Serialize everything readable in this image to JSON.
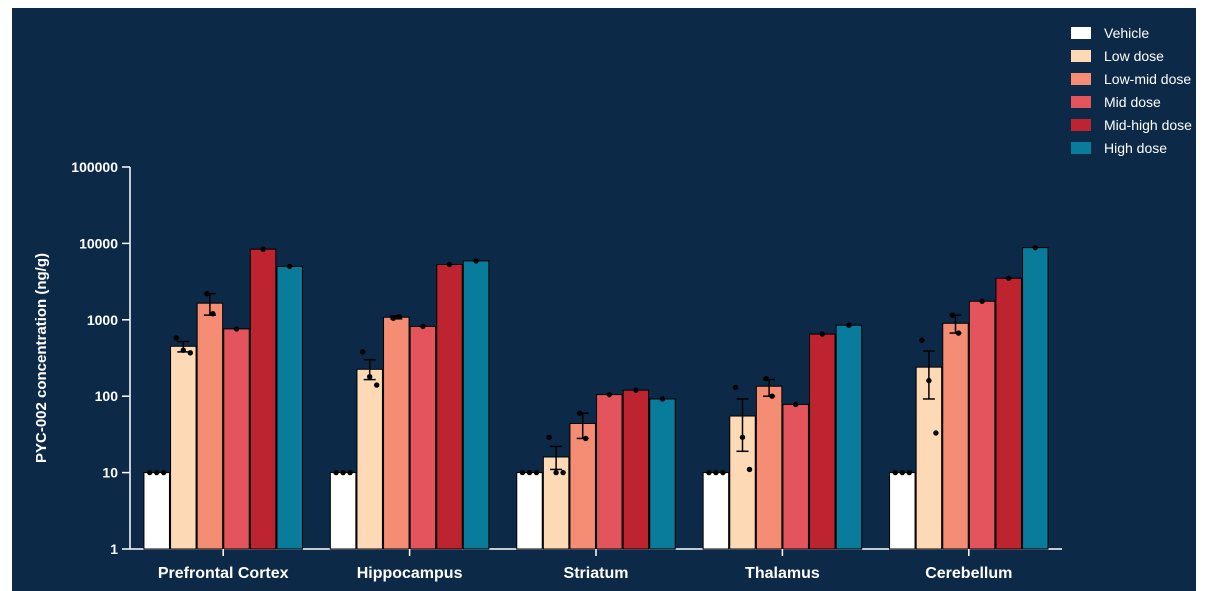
{
  "chart_data": {
    "type": "bar",
    "title": "",
    "xlabel": "",
    "ylabel": "PYC-002 concentration (ng/g)",
    "yscale": "log",
    "ylim": [
      1,
      100000
    ],
    "yticks": [
      "1",
      "10",
      "100",
      "1000",
      "10000",
      "100000"
    ],
    "legend_position": "top-right",
    "categories": [
      "Prefrontal Cortex",
      "Hippocampus",
      "Striatum",
      "Thalamus",
      "Cerebellum"
    ],
    "series": [
      {
        "name": "Vehicle",
        "color": "#ffffff",
        "values": [
          10,
          10,
          10,
          10,
          10
        ],
        "errors": [
          [
            10,
            10
          ],
          [
            10,
            10
          ],
          [
            10,
            10
          ],
          [
            10,
            10
          ],
          [
            10,
            10
          ]
        ],
        "points": [
          [
            10,
            10,
            10
          ],
          [
            10,
            10,
            10
          ],
          [
            10,
            10,
            10
          ],
          [
            10,
            10,
            10
          ],
          [
            10,
            10,
            10
          ]
        ]
      },
      {
        "name": "Low dose",
        "color": "#fdd9b5",
        "values": [
          450,
          225,
          16,
          55,
          240
        ],
        "errors": [
          [
            380,
            520
          ],
          [
            165,
            300
          ],
          [
            11,
            22
          ],
          [
            19,
            92
          ],
          [
            92,
            390
          ]
        ],
        "points": [
          [
            580,
            400,
            370
          ],
          [
            380,
            180,
            140
          ],
          [
            29,
            10,
            10
          ],
          [
            130,
            29,
            11
          ],
          [
            540,
            160,
            33
          ]
        ]
      },
      {
        "name": "Low-mid dose",
        "color": "#f48d74",
        "values": [
          1650,
          1080,
          44,
          135,
          900
        ],
        "errors": [
          [
            1150,
            2200
          ],
          [
            1030,
            1130
          ],
          [
            28,
            60
          ],
          [
            100,
            165
          ],
          [
            670,
            1150
          ]
        ],
        "points": [
          [
            2200,
            1200
          ],
          [
            1050,
            1100
          ],
          [
            60,
            28
          ],
          [
            170,
            100
          ],
          [
            1150,
            670
          ]
        ]
      },
      {
        "name": "Mid dose",
        "color": "#e3545c",
        "values": [
          760,
          820,
          105,
          78,
          1750
        ],
        "errors": [
          [
            760,
            760
          ],
          [
            820,
            820
          ],
          [
            105,
            105
          ],
          [
            78,
            78
          ],
          [
            1750,
            1750
          ]
        ],
        "points": [
          [
            760
          ],
          [
            820
          ],
          [
            105
          ],
          [
            78
          ],
          [
            1750
          ]
        ]
      },
      {
        "name": "Mid-high dose",
        "color": "#bd2430",
        "values": [
          8400,
          5300,
          120,
          650,
          3500
        ],
        "errors": [
          [
            8400,
            8400
          ],
          [
            5300,
            5300
          ],
          [
            120,
            120
          ],
          [
            650,
            650
          ],
          [
            3500,
            3500
          ]
        ],
        "points": [
          [
            8400
          ],
          [
            5300
          ],
          [
            120
          ],
          [
            650
          ],
          [
            3500
          ]
        ]
      },
      {
        "name": "High dose",
        "color": "#0a7c9b",
        "values": [
          5000,
          5900,
          92,
          850,
          8800
        ],
        "errors": [
          [
            5000,
            5000
          ],
          [
            5900,
            5900
          ],
          [
            92,
            92
          ],
          [
            850,
            850
          ],
          [
            8800,
            8800
          ]
        ],
        "points": [
          [
            5000
          ],
          [
            5900
          ],
          [
            92
          ],
          [
            850
          ],
          [
            8800
          ]
        ]
      }
    ]
  }
}
